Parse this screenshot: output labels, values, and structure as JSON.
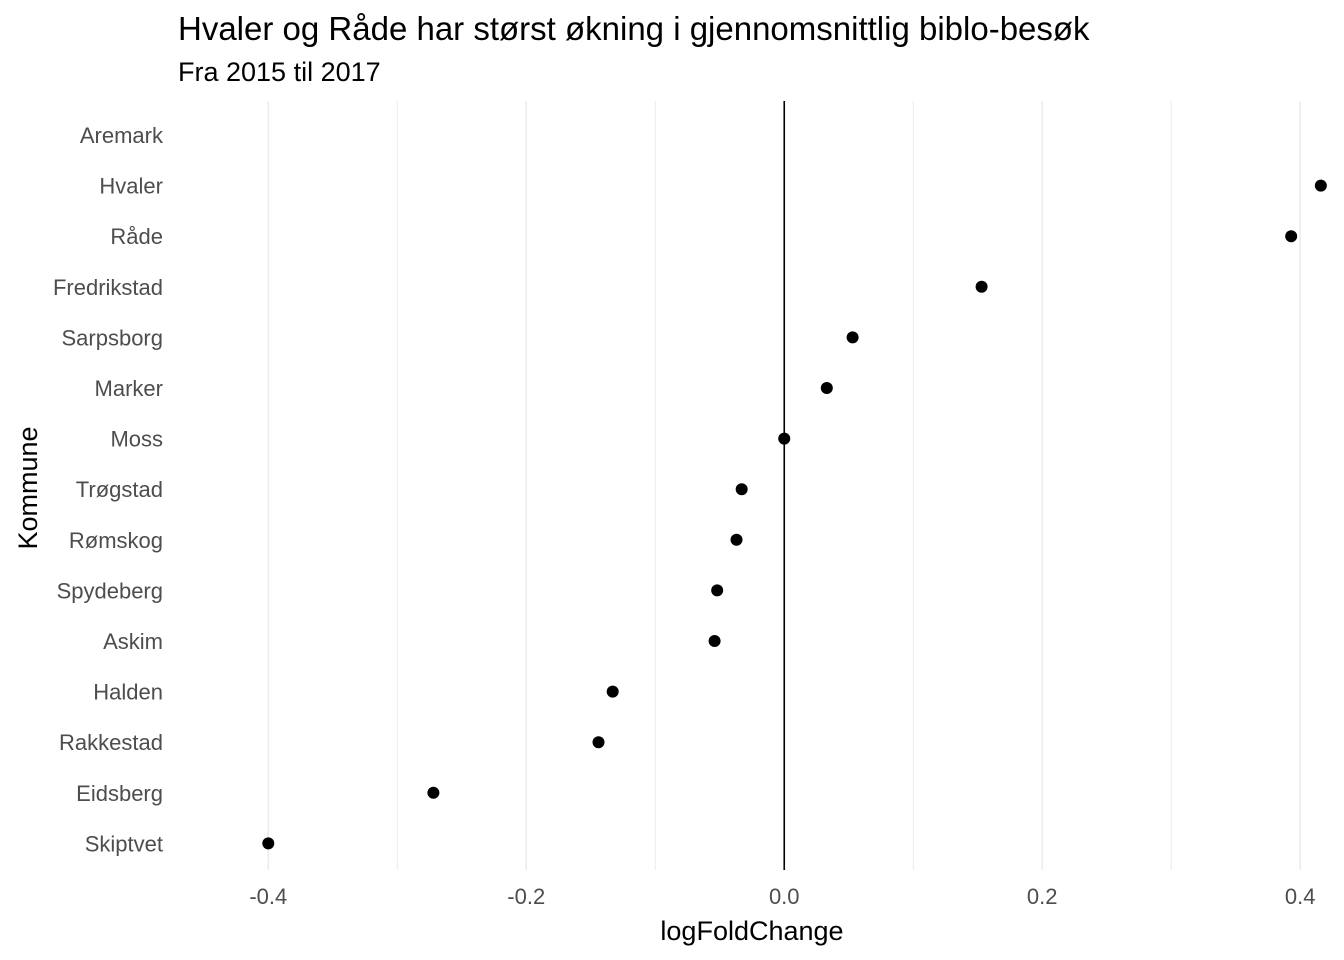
{
  "chart_data": {
    "type": "scatter",
    "title": "Hvaler og Råde har størst økning i gjennomsnittlig biblo-besøk",
    "subtitle": "Fra 2015 til 2017",
    "xlabel": "logFoldChange",
    "ylabel": "Kommune",
    "xlim": [
      -0.47,
      0.42
    ],
    "xticks": [
      -0.4,
      -0.2,
      0.0,
      0.2,
      0.4
    ],
    "xtick_labels": [
      "-0.4",
      "-0.2",
      "0.0",
      "0.2",
      "0.4"
    ],
    "reference_line_x": 0.0,
    "grid": "vertical",
    "legend": "none",
    "colors": {
      "point": "#000000",
      "grid": "#ebebeb",
      "ref_line": "#000000"
    },
    "points": [
      {
        "label": "Aremark",
        "x": null
      },
      {
        "label": "Hvaler",
        "x": 0.416
      },
      {
        "label": "Råde",
        "x": 0.393
      },
      {
        "label": "Fredrikstad",
        "x": 0.153
      },
      {
        "label": "Sarpsborg",
        "x": 0.053
      },
      {
        "label": "Marker",
        "x": 0.033
      },
      {
        "label": "Moss",
        "x": 0.0
      },
      {
        "label": "Trøgstad",
        "x": -0.033
      },
      {
        "label": "Rømskog",
        "x": -0.037
      },
      {
        "label": "Spydeberg",
        "x": -0.052
      },
      {
        "label": "Askim",
        "x": -0.054
      },
      {
        "label": "Halden",
        "x": -0.133
      },
      {
        "label": "Rakkestad",
        "x": -0.144
      },
      {
        "label": "Eidsberg",
        "x": -0.272
      },
      {
        "label": "Skiptvet",
        "x": -0.4
      }
    ]
  }
}
